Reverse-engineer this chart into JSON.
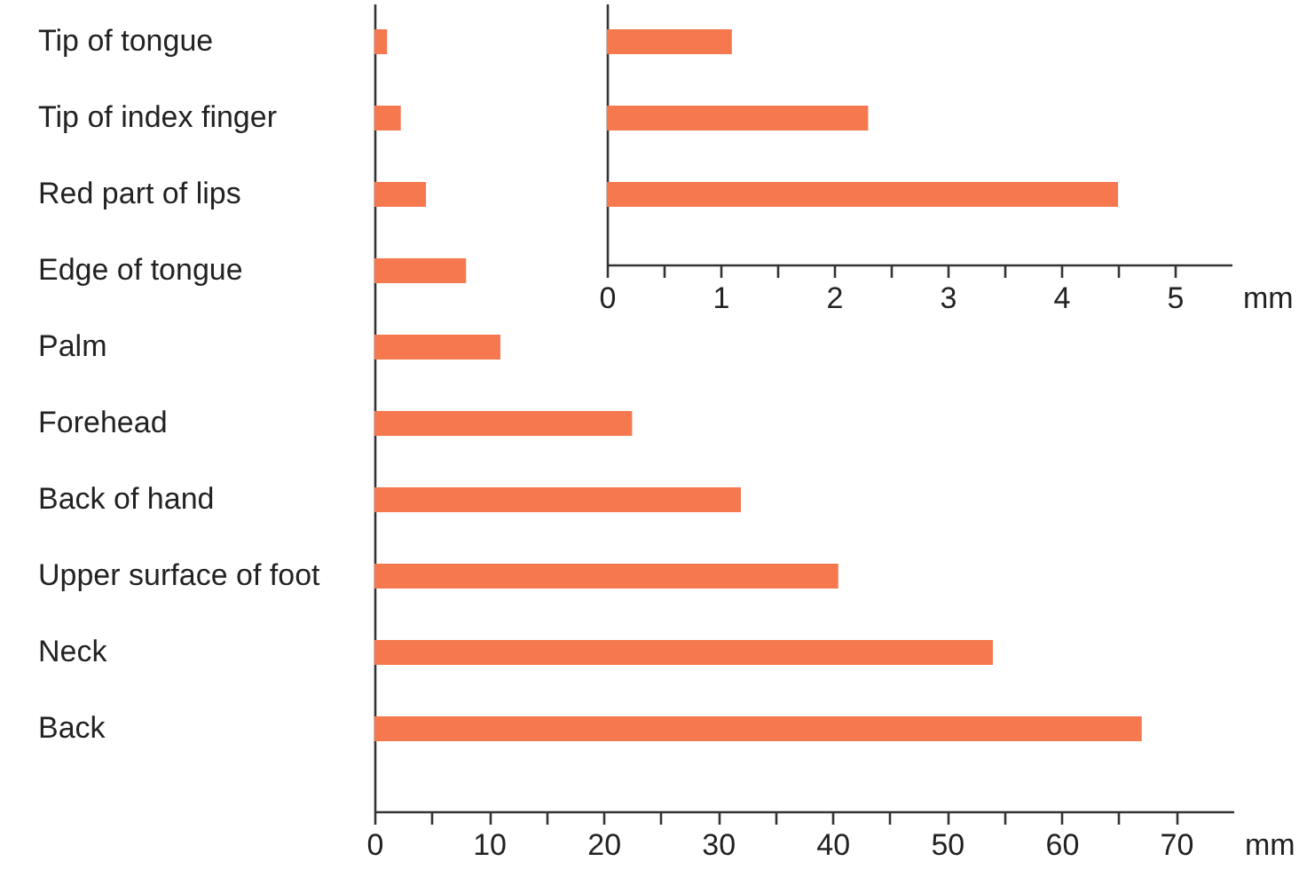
{
  "chart_data": [
    {
      "type": "bar",
      "orientation": "horizontal",
      "xlabel": "mm",
      "categories": [
        "Tip of tongue",
        "Tip of index finger",
        "Red part of lips",
        "Edge of tongue",
        "Palm",
        "Forehead",
        "Back of hand",
        "Upper surface of foot",
        "Neck",
        "Back"
      ],
      "series": [
        {
          "color": "#f5784f",
          "values": [
            1.1,
            2.3,
            4.5,
            8,
            11,
            22.5,
            32,
            40.5,
            54,
            67
          ]
        }
      ],
      "xlim": [
        0,
        75
      ],
      "xticks": [
        0,
        {
          "value": 5,
          "label": null
        },
        10,
        {
          "value": 15,
          "label": null
        },
        20,
        {
          "value": 25,
          "label": null
        },
        30,
        {
          "value": 35,
          "label": null
        },
        40,
        {
          "value": 45,
          "label": null
        },
        50,
        {
          "value": 55,
          "label": null
        },
        60,
        {
          "value": 65,
          "label": null
        },
        70
      ],
      "grid": false
    },
    {
      "type": "bar",
      "orientation": "horizontal",
      "xlabel": "mm",
      "categories": [
        null,
        null,
        null
      ],
      "series": [
        {
          "color": "#f5784f",
          "values": [
            1.1,
            2.3,
            4.5
          ]
        }
      ],
      "xlim": [
        0,
        5.5
      ],
      "xticks": [
        0,
        {
          "value": 0.5,
          "label": null
        },
        1,
        {
          "value": 1.5,
          "label": null
        },
        2,
        {
          "value": 2.5,
          "label": null
        },
        3,
        {
          "value": 3.5,
          "label": null
        },
        4,
        {
          "value": 4.5,
          "label": null
        },
        5
      ],
      "grid": false,
      "tick_labels": "x"
    }
  ]
}
